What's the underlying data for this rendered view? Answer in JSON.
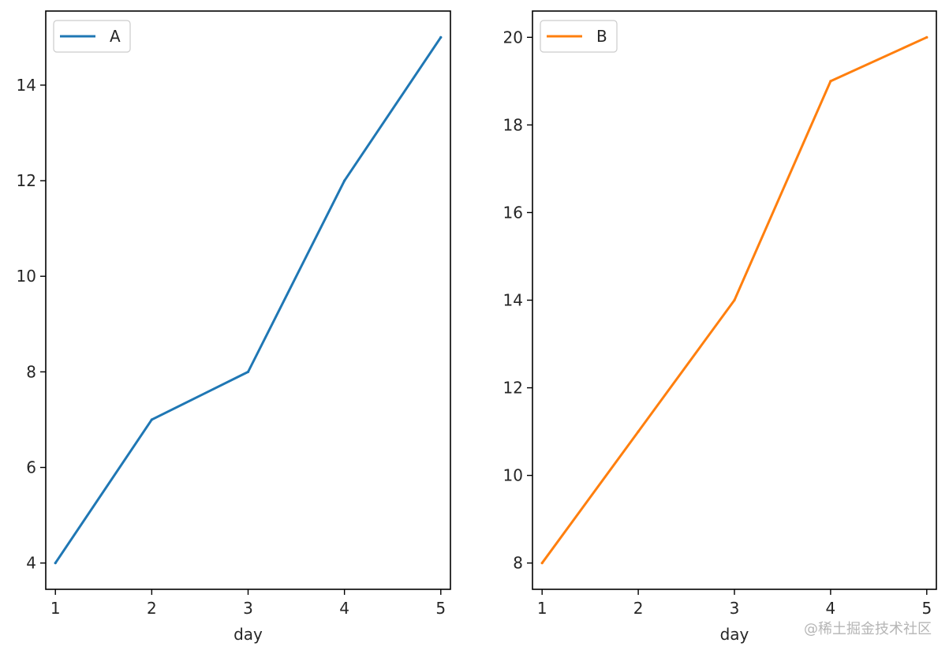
{
  "chart_data": [
    {
      "type": "line",
      "x": [
        1,
        2,
        3,
        4,
        5
      ],
      "xticks": [
        "1",
        "2",
        "3",
        "4",
        "5"
      ],
      "xlabel": "day",
      "ylabel": "",
      "xlim": [
        0.9,
        5.1
      ],
      "ylim": [
        3.45,
        15.55
      ],
      "yticks": [
        4,
        6,
        8,
        10,
        12,
        14
      ],
      "legend_placement": "upper-left",
      "grid": false,
      "series": [
        {
          "name": "A",
          "values": [
            4,
            7,
            8,
            12,
            15
          ],
          "color": "#1f77b4"
        }
      ]
    },
    {
      "type": "line",
      "x": [
        1,
        2,
        3,
        4,
        5
      ],
      "xticks": [
        "1",
        "2",
        "3",
        "4",
        "5"
      ],
      "xlabel": "day",
      "ylabel": "",
      "xlim": [
        0.9,
        5.1
      ],
      "ylim": [
        7.4,
        20.6
      ],
      "yticks": [
        8,
        10,
        12,
        14,
        16,
        18,
        20
      ],
      "legend_placement": "upper-left",
      "grid": false,
      "series": [
        {
          "name": "B",
          "values": [
            8,
            11,
            14,
            19,
            20
          ],
          "color": "#ff7f0e"
        }
      ]
    }
  ],
  "watermark": "@稀土掘金技术社区"
}
